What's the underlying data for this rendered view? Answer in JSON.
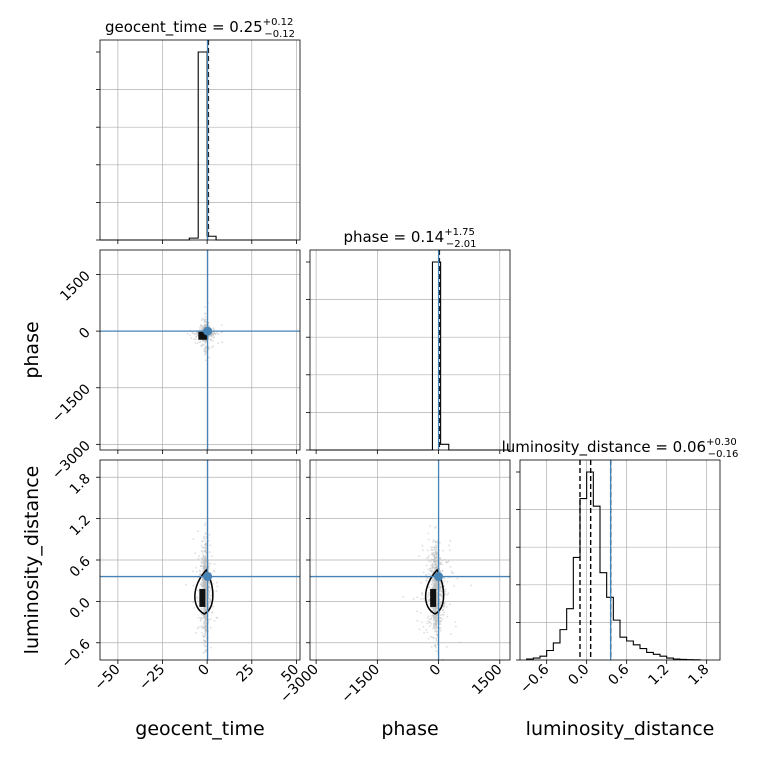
{
  "chart_data": [
    {
      "type": "histogram",
      "panel": "geocent_time",
      "title_param": "geocent_time",
      "title_median": "0.25",
      "title_plus": "+0.12",
      "title_minus": "−0.12",
      "xlim": [
        -60,
        52
      ],
      "bins": [
        -60,
        -55,
        -50,
        -45,
        -40,
        -35,
        -30,
        -25,
        -20,
        -15,
        -10,
        -5,
        0,
        5,
        10,
        15,
        20,
        25,
        30,
        35,
        40,
        45,
        50
      ],
      "counts": [
        0,
        0,
        0,
        0,
        0,
        0,
        0,
        0,
        0,
        0,
        0.01,
        1.0,
        0.02,
        0,
        0,
        0,
        0,
        0,
        0,
        0,
        0,
        0
      ],
      "truth": 0.25
    },
    {
      "type": "histogram",
      "panel": "phase",
      "title_param": "phase",
      "title_median": "0.14",
      "title_plus": "+1.75",
      "title_minus": "−2.01",
      "xlim": [
        -3150,
        1750
      ],
      "bins": [
        -3150,
        -2950,
        -2750,
        -2550,
        -2350,
        -2150,
        -1950,
        -1750,
        -1550,
        -1350,
        -1150,
        -950,
        -750,
        -550,
        -350,
        -150,
        50,
        250,
        450,
        650,
        850,
        1050,
        1250,
        1450,
        1650,
        1750
      ],
      "counts": [
        0,
        0,
        0,
        0,
        0,
        0,
        0,
        0,
        0,
        0,
        0,
        0,
        0,
        0,
        0,
        1.0,
        0.03,
        0,
        0,
        0,
        0,
        0,
        0,
        0,
        0
      ],
      "truth": 0.14
    },
    {
      "type": "histogram",
      "panel": "luminosity_distance",
      "title_param": "luminosity_distance",
      "title_median": "0.06",
      "title_plus": "+0.30",
      "title_minus": "−0.16",
      "xlim": [
        -1.0,
        2.0
      ],
      "bins": [
        -0.9,
        -0.8,
        -0.7,
        -0.6,
        -0.5,
        -0.4,
        -0.3,
        -0.2,
        -0.1,
        0.0,
        0.1,
        0.2,
        0.3,
        0.4,
        0.5,
        0.6,
        0.7,
        0.8,
        0.9,
        1.0,
        1.1,
        1.2,
        1.3,
        1.4,
        1.5,
        1.6,
        1.7
      ],
      "counts": [
        0.005,
        0.01,
        0.02,
        0.05,
        0.09,
        0.16,
        0.27,
        0.54,
        0.85,
        0.99,
        0.81,
        0.46,
        0.33,
        0.21,
        0.12,
        0.1,
        0.08,
        0.06,
        0.04,
        0.03,
        0.02,
        0.01,
        0.005,
        0.003,
        0.002,
        0.001
      ],
      "quantiles": [
        -0.1,
        0.06,
        0.36
      ],
      "truth": 0.36
    },
    {
      "type": "scatter",
      "panel": "phase_vs_geocent_time",
      "x_param": "geocent_time",
      "y_param": "phase",
      "xlim": [
        -60,
        52
      ],
      "ylim": [
        -3150,
        2150
      ],
      "truth": [
        0.25,
        0.14
      ],
      "contour_center": [
        -1,
        -70
      ]
    },
    {
      "type": "scatter",
      "panel": "luminosity_distance_vs_geocent_time",
      "x_param": "geocent_time",
      "y_param": "luminosity_distance",
      "xlim": [
        -60,
        52
      ],
      "ylim": [
        -0.85,
        2.05
      ],
      "truth": [
        0.25,
        0.36
      ],
      "contour_center": [
        -1,
        0.05
      ]
    },
    {
      "type": "scatter",
      "panel": "luminosity_distance_vs_phase",
      "x_param": "phase",
      "y_param": "luminosity_distance",
      "xlim": [
        -3150,
        1750
      ],
      "ylim": [
        -0.85,
        2.05
      ],
      "truth": [
        0.14,
        0.36
      ],
      "contour_center": [
        -60,
        0.05
      ]
    }
  ],
  "axes": {
    "geocent_time": {
      "label": "geocent_time",
      "ticks": [
        -50,
        -25,
        0,
        25,
        50
      ],
      "tick_labels": [
        "−50",
        "−25",
        "0",
        "25",
        "50"
      ]
    },
    "phase": {
      "label": "phase",
      "ticks": [
        -3000,
        -1500,
        0,
        1500
      ],
      "tick_labels": [
        "−3000",
        "−1500",
        "0",
        "1500"
      ]
    },
    "luminosity_distance": {
      "label": "luminosity_distance",
      "ticks": [
        -0.6,
        0.0,
        0.6,
        1.2,
        1.8
      ],
      "tick_labels": [
        "−0.6",
        "0.0",
        "0.6",
        "1.2",
        "1.8"
      ]
    }
  },
  "colors": {
    "truth": "#4682b4",
    "histogram": "#000000",
    "points": "#bdbdbd",
    "grid": "#b0b0b0"
  }
}
